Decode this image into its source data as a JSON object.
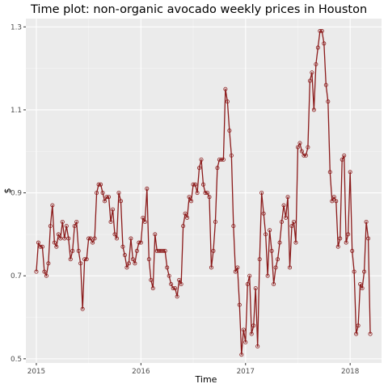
{
  "chart_data": {
    "type": "line",
    "title": "Time plot: non-organic avocado weekly prices in Houston",
    "xlabel": "Time",
    "ylabel": "$",
    "xlim": [
      2014.9,
      2018.3
    ],
    "ylim": [
      0.49,
      1.32
    ],
    "x_ticks": [
      {
        "value": 2015,
        "label": "2015"
      },
      {
        "value": 2016,
        "label": "2016"
      },
      {
        "value": 2017,
        "label": "2017"
      },
      {
        "value": 2018,
        "label": "2018"
      }
    ],
    "y_ticks": [
      {
        "value": 0.5,
        "label": "0.5"
      },
      {
        "value": 0.7,
        "label": "0.7"
      },
      {
        "value": 0.9,
        "label": "0.9"
      },
      {
        "value": 1.1,
        "label": "1.1"
      },
      {
        "value": 1.3,
        "label": "1.3"
      }
    ],
    "grid": true,
    "legend": "none",
    "series": [
      {
        "start_year": 2015.0,
        "frequency": 52,
        "line_color": "#8b1a1a",
        "point_color": "#8b1a1a",
        "values": [
          0.71,
          0.78,
          0.77,
          0.77,
          0.71,
          0.7,
          0.73,
          0.82,
          0.87,
          0.78,
          0.77,
          0.8,
          0.79,
          0.83,
          0.79,
          0.82,
          0.79,
          0.74,
          0.76,
          0.82,
          0.83,
          0.76,
          0.73,
          0.62,
          0.74,
          0.74,
          0.79,
          0.79,
          0.78,
          0.79,
          0.9,
          0.92,
          0.92,
          0.9,
          0.88,
          0.89,
          0.89,
          0.83,
          0.86,
          0.8,
          0.79,
          0.9,
          0.88,
          0.77,
          0.75,
          0.72,
          0.73,
          0.79,
          0.74,
          0.73,
          0.76,
          0.78,
          0.78,
          0.84,
          0.83,
          0.91,
          0.74,
          0.69,
          0.67,
          0.8,
          0.76,
          0.76,
          0.76,
          0.76,
          0.76,
          0.72,
          0.7,
          0.68,
          0.67,
          0.67,
          0.65,
          0.69,
          0.68,
          0.82,
          0.85,
          0.84,
          0.89,
          0.88,
          0.92,
          0.92,
          0.9,
          0.96,
          0.98,
          0.92,
          0.9,
          0.9,
          0.89,
          0.72,
          0.76,
          0.83,
          0.96,
          0.98,
          0.98,
          0.98,
          1.15,
          1.12,
          1.05,
          0.99,
          0.82,
          0.71,
          0.72,
          0.63,
          0.51,
          0.57,
          0.54,
          0.68,
          0.7,
          0.56,
          0.58,
          0.67,
          0.53,
          0.74,
          0.9,
          0.85,
          0.8,
          0.7,
          0.81,
          0.76,
          0.68,
          0.72,
          0.74,
          0.78,
          0.83,
          0.87,
          0.84,
          0.89,
          0.72,
          0.82,
          0.83,
          0.78,
          1.01,
          1.02,
          1.0,
          0.99,
          0.99,
          1.01,
          1.17,
          1.19,
          1.1,
          1.21,
          1.25,
          1.29,
          1.29,
          1.26,
          1.16,
          1.12,
          0.95,
          0.88,
          0.89,
          0.88,
          0.77,
          0.79,
          0.98,
          0.99,
          0.78,
          0.8,
          0.95,
          0.76,
          0.71,
          0.56,
          0.58,
          0.68,
          0.67,
          0.71,
          0.83,
          0.79,
          0.56
        ]
      }
    ]
  }
}
